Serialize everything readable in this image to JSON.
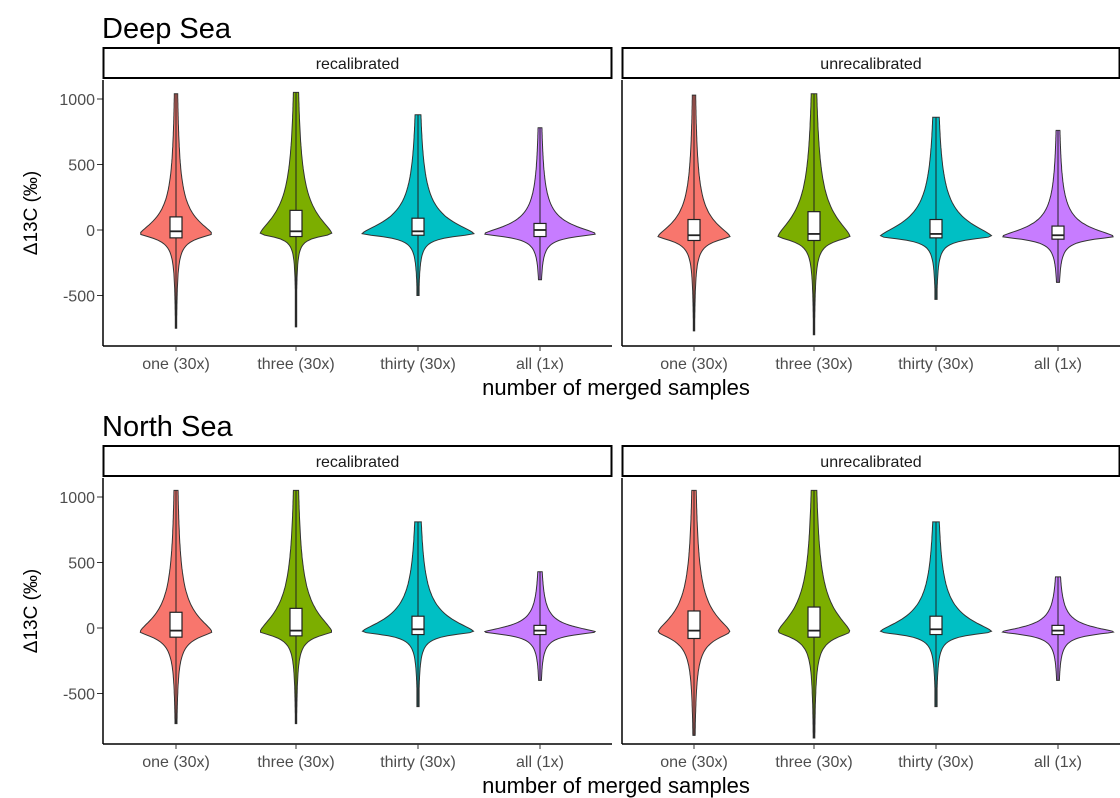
{
  "chart_data": [
    {
      "type": "violin",
      "title": "Deep Sea",
      "xlabel": "number of merged samples",
      "ylabel": "Δ13C (‰)",
      "ylim": [
        -840,
        1130
      ],
      "yticks": [
        1000,
        500,
        0,
        -500
      ],
      "ytick_labels": [
        "1000",
        "500",
        "0",
        "-500"
      ],
      "categories": [
        "one (30x)",
        "three (30x)",
        "thirty (30x)",
        "all (1x)"
      ],
      "category_colors": [
        "#f8766d",
        "#7cae00",
        "#00bfc4",
        "#c77cff"
      ],
      "facets": [
        {
          "label": "recalibrated",
          "groups": [
            {
              "category": "one (30x)",
              "min": -750,
              "max": 1040,
              "mode": -30,
              "q1": -60,
              "median": -10,
              "q3": 100
            },
            {
              "category": "three (30x)",
              "min": -740,
              "max": 1050,
              "mode": -30,
              "q1": -50,
              "median": -10,
              "q3": 150
            },
            {
              "category": "thirty (30x)",
              "min": -500,
              "max": 880,
              "mode": -30,
              "q1": -40,
              "median": -10,
              "q3": 90
            },
            {
              "category": "all (1x)",
              "min": -380,
              "max": 780,
              "mode": -30,
              "q1": -50,
              "median": 0,
              "q3": 50
            }
          ]
        },
        {
          "label": "unrecalibrated",
          "groups": [
            {
              "category": "one (30x)",
              "min": -770,
              "max": 1030,
              "mode": -50,
              "q1": -80,
              "median": -40,
              "q3": 80
            },
            {
              "category": "three (30x)",
              "min": -800,
              "max": 1040,
              "mode": -50,
              "q1": -80,
              "median": -30,
              "q3": 140
            },
            {
              "category": "thirty (30x)",
              "min": -530,
              "max": 860,
              "mode": -50,
              "q1": -60,
              "median": -30,
              "q3": 80
            },
            {
              "category": "all (1x)",
              "min": -400,
              "max": 760,
              "mode": -50,
              "q1": -70,
              "median": -40,
              "q3": 30
            }
          ]
        }
      ]
    },
    {
      "type": "violin",
      "title": "North Sea",
      "xlabel": "number of merged samples",
      "ylabel": "Δ13C (‰)",
      "ylim": [
        -840,
        1130
      ],
      "yticks": [
        1000,
        500,
        0,
        -500
      ],
      "ytick_labels": [
        "1000",
        "500",
        "0",
        "-500"
      ],
      "categories": [
        "one (30x)",
        "three (30x)",
        "thirty (30x)",
        "all (1x)"
      ],
      "category_colors": [
        "#f8766d",
        "#7cae00",
        "#00bfc4",
        "#c77cff"
      ],
      "facets": [
        {
          "label": "recalibrated",
          "groups": [
            {
              "category": "one (30x)",
              "min": -730,
              "max": 1050,
              "mode": -30,
              "q1": -70,
              "median": -20,
              "q3": 120
            },
            {
              "category": "three (30x)",
              "min": -730,
              "max": 1050,
              "mode": -30,
              "q1": -60,
              "median": -20,
              "q3": 150
            },
            {
              "category": "thirty (30x)",
              "min": -600,
              "max": 810,
              "mode": -30,
              "q1": -50,
              "median": -10,
              "q3": 90
            },
            {
              "category": "all (1x)",
              "min": -400,
              "max": 430,
              "mode": -30,
              "q1": -50,
              "median": -20,
              "q3": 20
            }
          ]
        },
        {
          "label": "unrecalibrated",
          "groups": [
            {
              "category": "one (30x)",
              "min": -820,
              "max": 1050,
              "mode": -30,
              "q1": -80,
              "median": -20,
              "q3": 130
            },
            {
              "category": "three (30x)",
              "min": -840,
              "max": 1050,
              "mode": -30,
              "q1": -70,
              "median": -20,
              "q3": 160
            },
            {
              "category": "thirty (30x)",
              "min": -600,
              "max": 810,
              "mode": -30,
              "q1": -50,
              "median": -10,
              "q3": 90
            },
            {
              "category": "all (1x)",
              "min": -400,
              "max": 390,
              "mode": -30,
              "q1": -50,
              "median": -20,
              "q3": 20
            }
          ]
        }
      ]
    }
  ]
}
